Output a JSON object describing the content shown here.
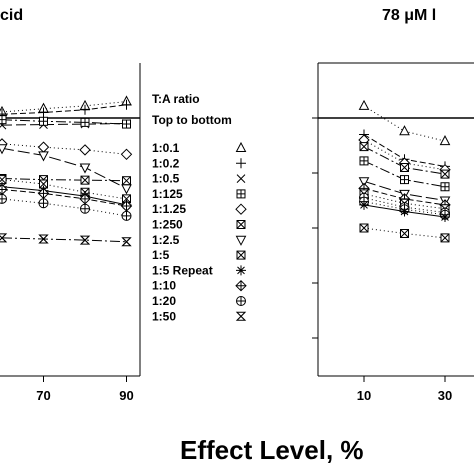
{
  "chart_data": [
    {
      "type": "line",
      "title": "cid",
      "x": [
        60,
        70,
        80,
        90
      ],
      "x_ticks": [
        "70",
        "90"
      ],
      "series": [
        {
          "name": "1:0.1",
          "marker": "triangle",
          "dash": "1,3",
          "values": [
            0.89,
            0.83,
            0.78,
            0.7
          ]
        },
        {
          "name": "1:0.2",
          "marker": "plus",
          "dash": "6,3",
          "values": [
            0.93,
            0.9,
            0.85,
            0.76
          ]
        },
        {
          "name": "1:0.5",
          "marker": "x",
          "dash": "10,4",
          "values": [
            1.13,
            1.12,
            1.11,
            1.1
          ]
        },
        {
          "name": "1:125",
          "marker": "square-plus",
          "dash": "10,3,2,3",
          "values": [
            1.03,
            1.06,
            1.08,
            1.11
          ]
        },
        {
          "name": "1:1.25",
          "marker": "diamond",
          "dash": "1,3",
          "values": [
            1.47,
            1.53,
            1.58,
            1.66
          ]
        },
        {
          "name": "1:250",
          "marker": "square-x",
          "dash": "10,3,2,3",
          "values": [
            2.1,
            2.12,
            2.13,
            2.14
          ]
        },
        {
          "name": "1:2.5",
          "marker": "triangle-down",
          "dash": "12,4",
          "values": [
            1.55,
            1.68,
            1.9,
            2.28
          ]
        },
        {
          "name": "1:5",
          "marker": "square-x",
          "dash": "1,3",
          "values": [
            2.12,
            2.2,
            2.35,
            2.47
          ]
        },
        {
          "name": "1:5 Repeat",
          "marker": "asterisk",
          "dash": "",
          "values": [
            2.25,
            2.32,
            2.42,
            2.58
          ]
        },
        {
          "name": "1:10",
          "marker": "diamond-plus",
          "dash": "6,3",
          "values": [
            2.3,
            2.37,
            2.47,
            2.6
          ]
        },
        {
          "name": "1:20",
          "marker": "circle-plus",
          "dash": "1,3",
          "values": [
            2.47,
            2.55,
            2.65,
            2.78
          ]
        },
        {
          "name": "1:50",
          "marker": "hourglass",
          "dash": "10,3,2,3",
          "values": [
            3.18,
            3.2,
            3.22,
            3.25
          ]
        }
      ]
    },
    {
      "type": "line",
      "title": "78 μM l",
      "x": [
        10,
        20,
        30,
        40
      ],
      "x_ticks": [
        "10",
        "30"
      ],
      "series": [
        {
          "name": "1:0.1",
          "marker": "triangle",
          "dash": "1,3",
          "values": [
            0.78,
            1.24,
            1.42,
            1.55
          ]
        },
        {
          "name": "1:0.2",
          "marker": "plus",
          "dash": "6,3",
          "values": [
            1.3,
            1.75,
            1.88,
            1.98
          ]
        },
        {
          "name": "1:1.25",
          "marker": "diamond",
          "dash": "1,3",
          "values": [
            1.4,
            1.82,
            1.94,
            2.03
          ]
        },
        {
          "name": "1:0.5",
          "marker": "square-x",
          "dash": "10,3,2,3",
          "values": [
            1.52,
            1.9,
            2.02,
            2.1
          ]
        },
        {
          "name": "1:125",
          "marker": "square-plus",
          "dash": "10,3,2,3",
          "values": [
            1.78,
            2.12,
            2.25,
            2.33
          ]
        },
        {
          "name": "1:2.5",
          "marker": "triangle-down",
          "dash": "12,4",
          "values": [
            2.15,
            2.38,
            2.5,
            2.57
          ]
        },
        {
          "name": "1:5",
          "marker": "diamond-plus",
          "dash": "6,3",
          "values": [
            2.28,
            2.47,
            2.58,
            2.64
          ]
        },
        {
          "name": "1:10",
          "marker": "square-x",
          "dash": "1,3",
          "values": [
            2.38,
            2.55,
            2.65,
            2.71
          ]
        },
        {
          "name": "1:20",
          "marker": "circle-plus",
          "dash": "1,3",
          "values": [
            2.45,
            2.62,
            2.72,
            2.78
          ]
        },
        {
          "name": "1:250",
          "marker": "circle-plus",
          "dash": "1,3",
          "values": [
            2.52,
            2.66,
            2.76,
            2.82
          ]
        },
        {
          "name": "1:5 Repeat",
          "marker": "asterisk",
          "dash": "",
          "values": [
            2.58,
            2.7,
            2.8,
            2.86
          ]
        },
        {
          "name": "1:50",
          "marker": "square-x",
          "dash": "1,3",
          "values": [
            3.0,
            3.1,
            3.18,
            3.24
          ]
        }
      ]
    }
  ],
  "legend": {
    "title1": "T:A ratio",
    "title2": "Top to bottom",
    "items": [
      {
        "label": "1:0.1",
        "marker": "triangle"
      },
      {
        "label": "1:0.2",
        "marker": "plus"
      },
      {
        "label": "1:0.5",
        "marker": "x"
      },
      {
        "label": "1:125",
        "marker": "square-plus"
      },
      {
        "label": "1:1.25",
        "marker": "diamond"
      },
      {
        "label": "1:250",
        "marker": "square-x"
      },
      {
        "label": "1:2.5",
        "marker": "triangle-down"
      },
      {
        "label": "1:5",
        "marker": "square-x"
      },
      {
        "label": "1:5 Repeat",
        "marker": "asterisk"
      },
      {
        "label": "1:10",
        "marker": "diamond-plus"
      },
      {
        "label": "1:20",
        "marker": "circle-plus"
      },
      {
        "label": "1:50",
        "marker": "hourglass"
      }
    ]
  },
  "xlabel": "Effect Level, %",
  "reference_line": 1.0
}
